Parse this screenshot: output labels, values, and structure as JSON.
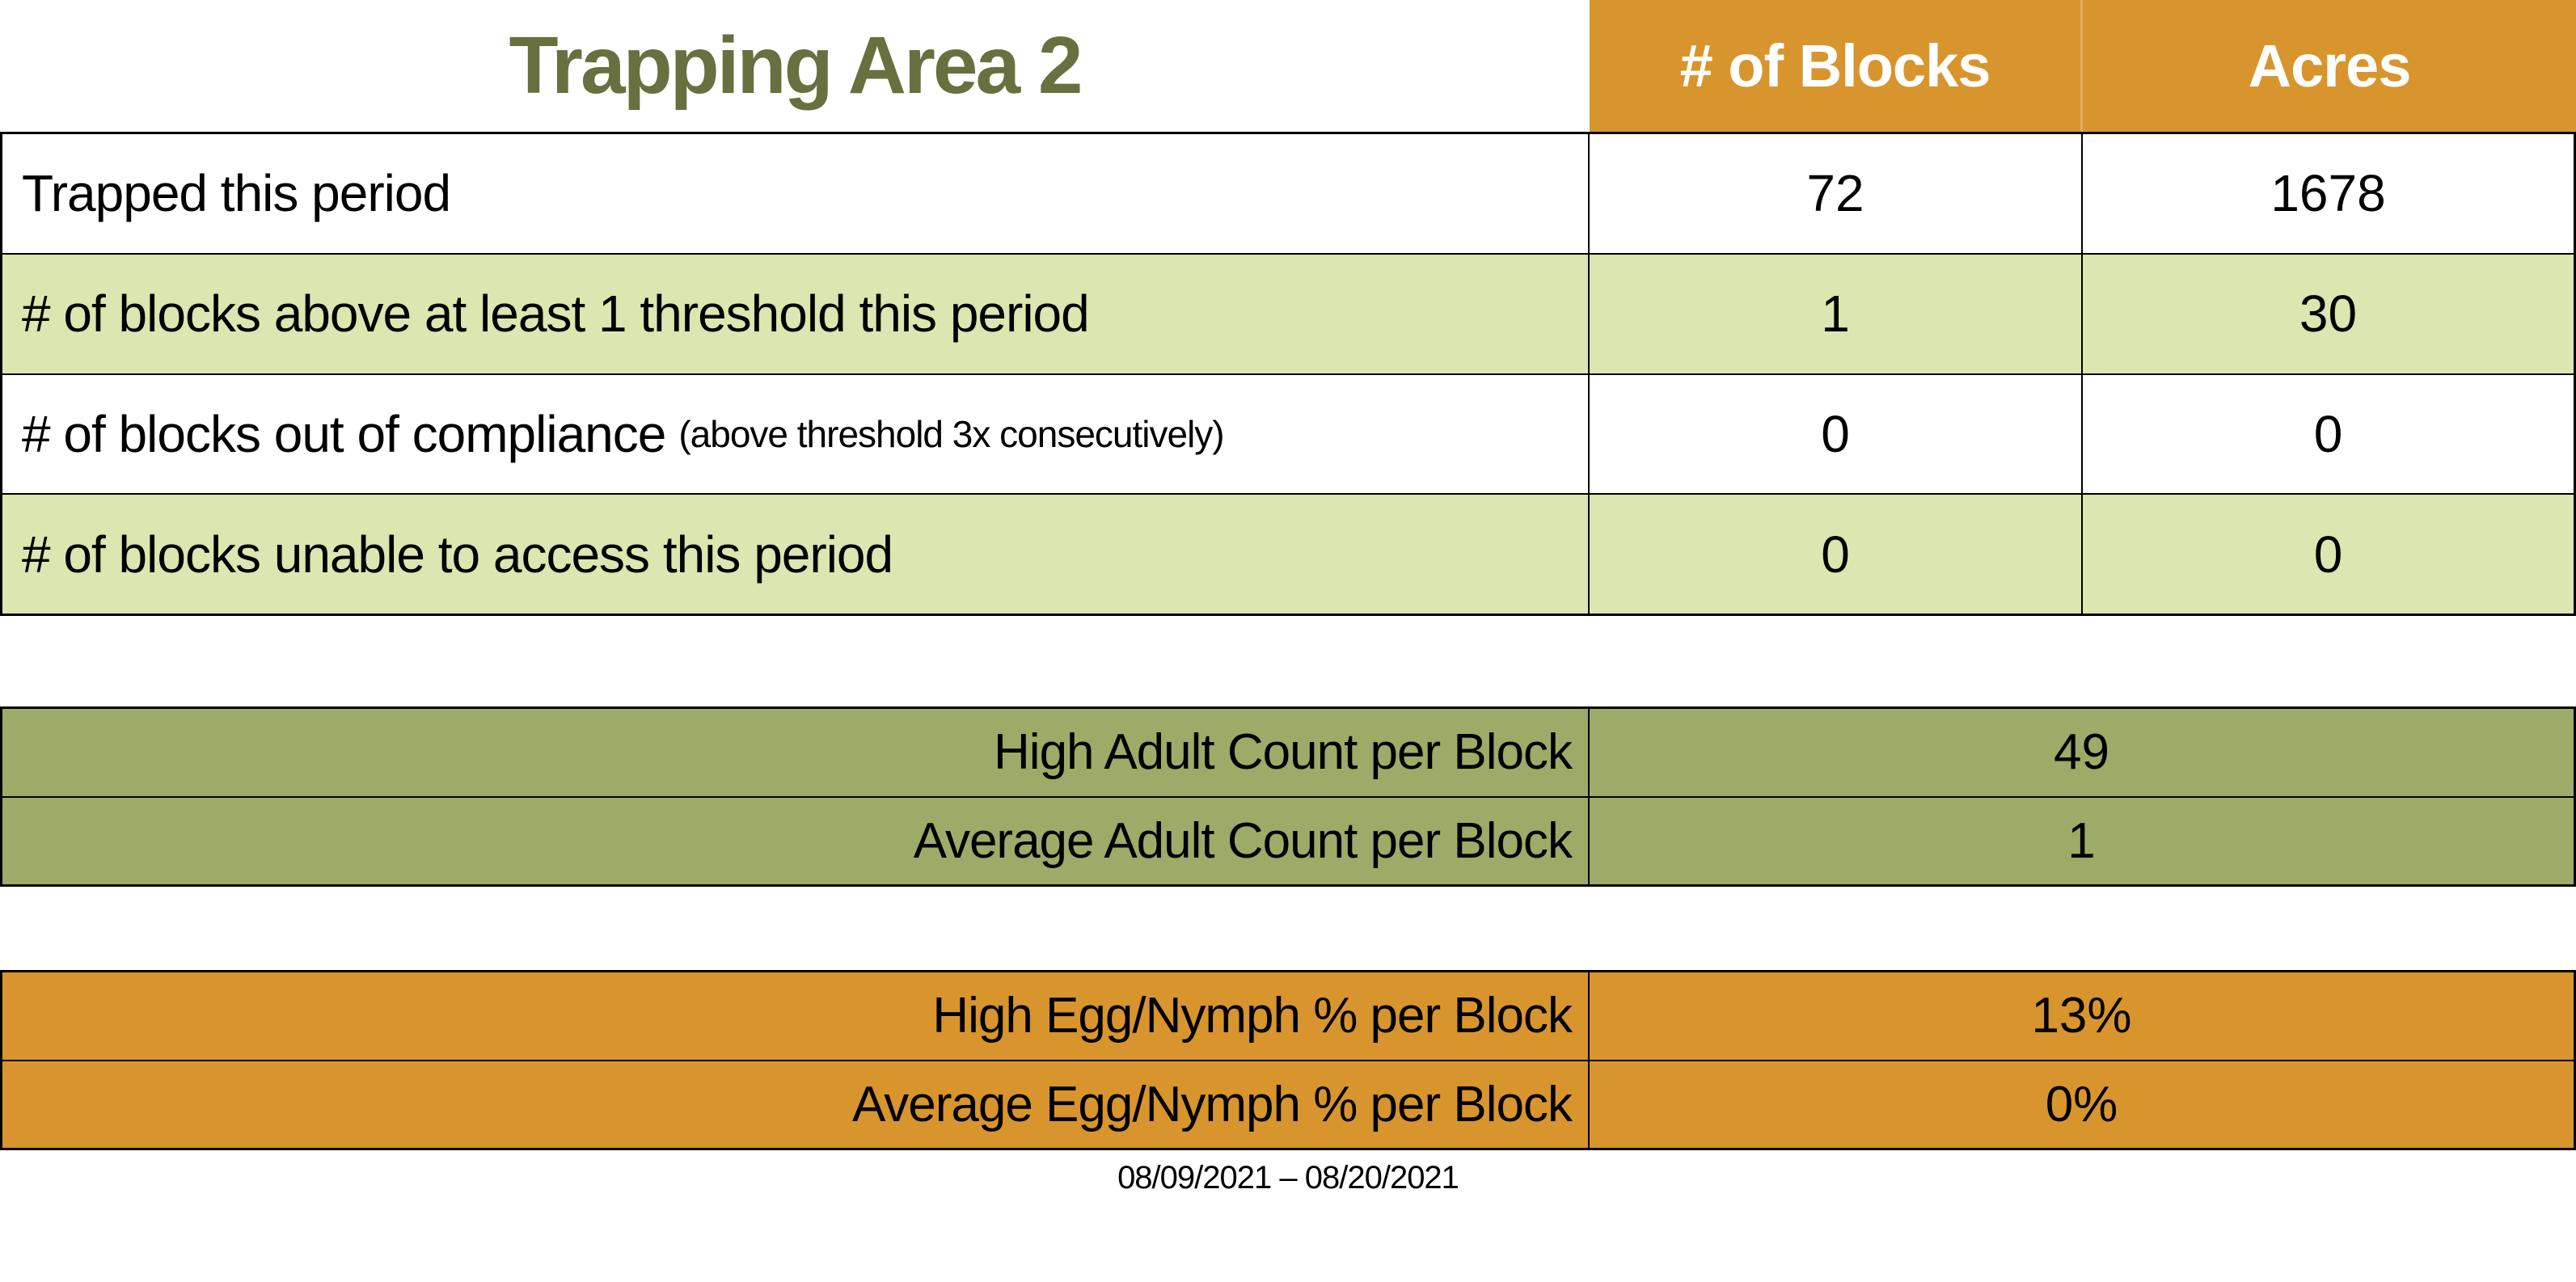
{
  "header": {
    "title": "Trapping Area 2",
    "columns": [
      {
        "label": "# of Blocks"
      },
      {
        "label": "Acres"
      }
    ]
  },
  "summary_table": {
    "rows": [
      {
        "label": "Trapped this period",
        "note": "",
        "blocks": "72",
        "acres": "1678"
      },
      {
        "label": "# of blocks above at least 1 threshold this period",
        "note": "",
        "blocks": "1",
        "acres": "30"
      },
      {
        "label": "# of blocks out of compliance",
        "note": "(above threshold 3x consecutively)",
        "blocks": "0",
        "acres": "0"
      },
      {
        "label": "# of blocks unable to access this period",
        "note": "",
        "blocks": "0",
        "acres": "0"
      }
    ]
  },
  "adult_table": {
    "rows": [
      {
        "label": "High Adult Count per Block",
        "value": "49"
      },
      {
        "label": "Average Adult Count per Block",
        "value": "1"
      }
    ]
  },
  "egg_table": {
    "rows": [
      {
        "label": "High Egg/Nymph % per Block",
        "value": "13%"
      },
      {
        "label": "Average Egg/Nymph % per Block",
        "value": "0%"
      }
    ]
  },
  "footer": {
    "date_range": "08/09/2021 – 08/20/2021"
  },
  "colors": {
    "orange": "#D8952D",
    "light_green": "#DBE6B0",
    "olive": "#9CAB67",
    "title_green": "#68703F",
    "header_text": "#FFFFFF"
  }
}
